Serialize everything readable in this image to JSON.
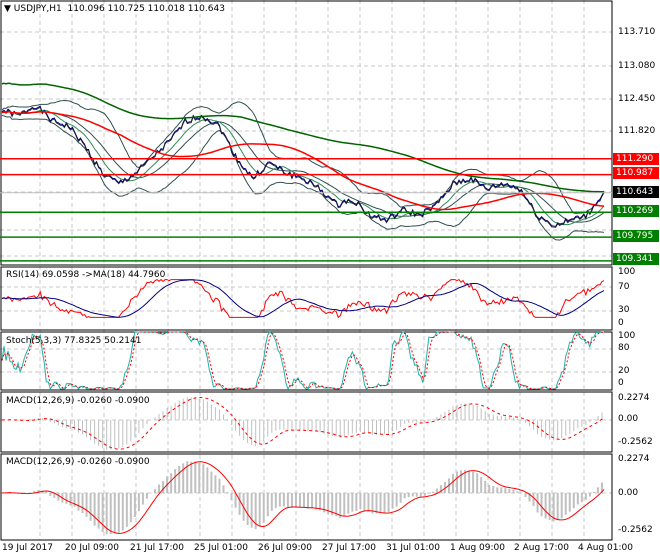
{
  "header": {
    "symbol": "USDJPY,H1",
    "ohlc": "110.096 110.725 110.018 110.643"
  },
  "price_axis": [
    "113.710",
    "113.080",
    "112.450",
    "111.820"
  ],
  "levels": [
    {
      "value": 111.29,
      "label": "111.290",
      "color": "#ff0000"
    },
    {
      "value": 110.987,
      "label": "110.987",
      "color": "#ff0000"
    },
    {
      "value": 110.269,
      "label": "110.269",
      "color": "#008000"
    },
    {
      "value": 109.795,
      "label": "109.795",
      "color": "#008000"
    },
    {
      "value": 109.341,
      "label": "109.341",
      "color": "#008000"
    }
  ],
  "current_price": {
    "value": 110.643,
    "label": "110.643",
    "color": "#000000"
  },
  "price_path": [
    112.2,
    112.1,
    112.3,
    112.0,
    111.9,
    111.5,
    111.0,
    110.8,
    111.0,
    111.3,
    111.6,
    112.0,
    112.1,
    111.9,
    111.3,
    110.9,
    111.2,
    111.0,
    110.9,
    110.7,
    110.4,
    110.5,
    110.2,
    110.1,
    110.3,
    110.2,
    110.4,
    110.8,
    110.9,
    110.7,
    110.8,
    110.7,
    110.2,
    110.0,
    110.1,
    110.2,
    110.64
  ],
  "rsi": {
    "label": "RSI(14) 69.0598  ->MA(18) 44.7960",
    "axis": [
      "100",
      "70",
      "30",
      "0"
    ]
  },
  "stoch": {
    "label": "Stoch(5,3,3) 77.8325 50.2141",
    "axis": [
      "100",
      "80",
      "20",
      "0"
    ]
  },
  "macd1": {
    "label": "MACD(12,26,9) -0.0260 -0.0900",
    "axis": [
      "0.2274",
      "0.00",
      "-0.2562"
    ]
  },
  "macd2": {
    "label": "MACD(12,26,9) -0.0260 -0.0900",
    "axis": [
      "0.2274",
      "0.00",
      "-0.2562"
    ]
  },
  "time_axis": [
    "19 Jul 2017",
    "20 Jul 09:00",
    "21 Jul 17:00",
    "25 Jul 01:00",
    "26 Jul 09:00",
    "27 Jul 17:00",
    "31 Jul 01:00",
    "1 Aug 09:00",
    "2 Aug 17:00",
    "4 Aug 01:00"
  ],
  "colors": {
    "up": "#ff0000",
    "ma_green": "#006400",
    "bands": "#2f4f4f",
    "stoch_main": "#20b2aa",
    "rsi_ma": "#000080",
    "hist": "#c0c0c0"
  }
}
